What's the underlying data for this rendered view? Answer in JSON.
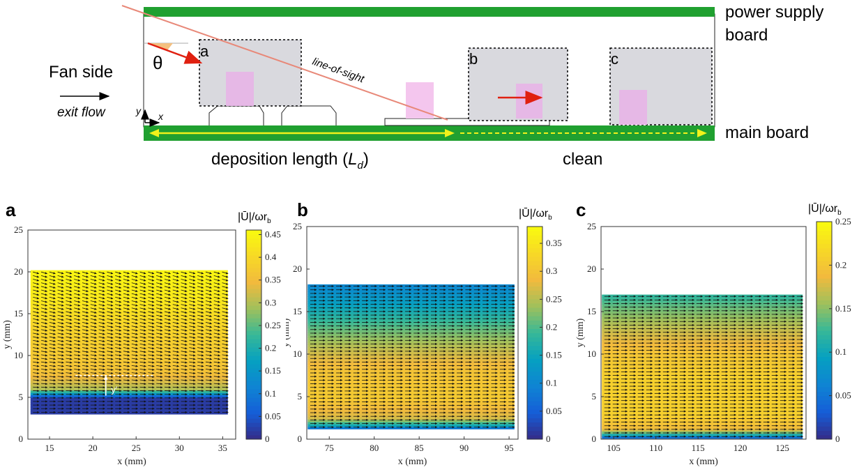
{
  "schematic": {
    "fan_side": "Fan side",
    "exit_flow": "exit flow",
    "theta": "θ",
    "axis_x": "x",
    "axis_y": "y",
    "box_labels": [
      "a",
      "b",
      "c"
    ],
    "line_of_sight": "line-of-sight",
    "power_supply_line1": "power supply",
    "power_supply_line2": "board",
    "main_board": "main board",
    "deposition_text": "deposition length (",
    "deposition_symbol": "L",
    "deposition_sub": "d",
    "deposition_close": ")",
    "clean": "clean",
    "colors": {
      "board_green": "#20a030",
      "arrow_yellow": "#f2f21a",
      "arrow_red": "#e02010",
      "box_gray": "#d9d9de",
      "pink": "#f4c6ee",
      "los_line": "#e88878"
    }
  },
  "chart_data": [
    {
      "panel": "a",
      "type": "heatmap",
      "xlabel": "x (mm)",
      "ylabel": "y (mm)",
      "xlim": [
        12.5,
        36.5
      ],
      "ylim": [
        0,
        25
      ],
      "xticks": [
        15,
        20,
        25,
        30,
        35
      ],
      "yticks": [
        0,
        5,
        10,
        15,
        20,
        25
      ],
      "field_x": [
        12.8,
        35.6
      ],
      "field_y": [
        3,
        20.2
      ],
      "colorbar_label": "|Ū|/ωr",
      "colorbar_sub": "b",
      "colorbar_range": [
        0,
        0.46
      ],
      "colorbar_ticks": [
        0,
        0.05,
        0.1,
        0.15,
        0.2,
        0.25,
        0.3,
        0.35,
        0.4,
        0.45
      ],
      "profile": [
        [
          3,
          0.02
        ],
        [
          5,
          0.02
        ],
        [
          5.4,
          0.15
        ],
        [
          6,
          0.3
        ],
        [
          8,
          0.36
        ],
        [
          11,
          0.38
        ],
        [
          14,
          0.4
        ],
        [
          17,
          0.43
        ],
        [
          20.2,
          0.45
        ]
      ],
      "arrow_angle_deg": [
        [
          3,
          0
        ],
        [
          5,
          0
        ],
        [
          7,
          -6
        ],
        [
          12,
          -12
        ],
        [
          20.2,
          -16
        ]
      ],
      "annotation": "y′"
    },
    {
      "panel": "b",
      "type": "heatmap",
      "xlabel": "x (mm)",
      "ylabel": "y (mm)",
      "xlim": [
        72.5,
        96
      ],
      "ylim": [
        0,
        25
      ],
      "xticks": [
        75,
        80,
        85,
        90,
        95
      ],
      "yticks": [
        0,
        5,
        10,
        15,
        20,
        25
      ],
      "field_x": [
        72.6,
        95.6
      ],
      "field_y": [
        1.2,
        18.2
      ],
      "colorbar_label": "|Ū|/ωr",
      "colorbar_sub": "b",
      "colorbar_range": [
        0,
        0.38
      ],
      "colorbar_ticks": [
        0,
        0.05,
        0.1,
        0.15,
        0.2,
        0.25,
        0.3,
        0.35
      ],
      "profile": [
        [
          1.2,
          0.05
        ],
        [
          1.6,
          0.15
        ],
        [
          2.5,
          0.27
        ],
        [
          5,
          0.31
        ],
        [
          8,
          0.3
        ],
        [
          10.5,
          0.26
        ],
        [
          13,
          0.21
        ],
        [
          16,
          0.14
        ],
        [
          18.2,
          0.1
        ]
      ],
      "arrow_angle_deg": [
        [
          1.2,
          0
        ],
        [
          18.2,
          0
        ]
      ]
    },
    {
      "panel": "c",
      "type": "heatmap",
      "xlabel": "x (mm)",
      "ylabel": "y (mm)",
      "xlim": [
        103.5,
        127.8
      ],
      "ylim": [
        0,
        25
      ],
      "xticks": [
        105,
        110,
        115,
        120,
        125
      ],
      "yticks": [
        0,
        5,
        10,
        15,
        20,
        25
      ],
      "field_x": [
        103.6,
        127.4
      ],
      "field_y": [
        0.1,
        17
      ],
      "colorbar_label": "|Ū|/ωr",
      "colorbar_sub": "b",
      "colorbar_range": [
        0,
        0.25
      ],
      "colorbar_ticks": [
        0,
        0.05,
        0.1,
        0.15,
        0.2,
        0.25
      ],
      "profile": [
        [
          0.1,
          0.02
        ],
        [
          0.6,
          0.12
        ],
        [
          1.2,
          0.19
        ],
        [
          3,
          0.21
        ],
        [
          7,
          0.21
        ],
        [
          10,
          0.2
        ],
        [
          13,
          0.17
        ],
        [
          15.5,
          0.14
        ],
        [
          17,
          0.12
        ]
      ],
      "arrow_angle_deg": [
        [
          0.1,
          0
        ],
        [
          17,
          0
        ]
      ]
    }
  ]
}
